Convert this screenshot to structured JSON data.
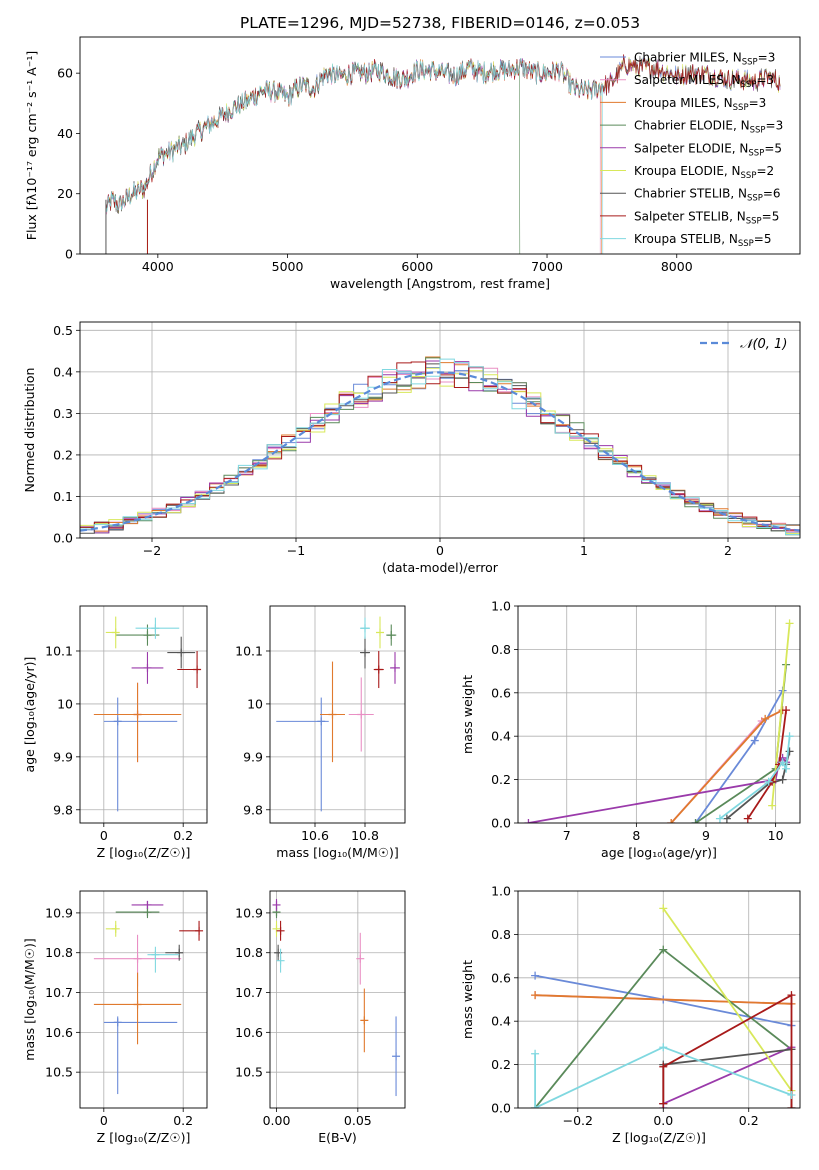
{
  "title": "PLATE=1296, MJD=52738, FIBERID=0146, z=0.053",
  "colors": {
    "Chabrier MILES": "#6a8ad8",
    "Salpeter MILES": "#e98fc4",
    "Kroupa MILES": "#e07a2e",
    "Chabrier ELODIE": "#5a8a5a",
    "Salpeter ELODIE": "#9a3aaa",
    "Kroupa ELODIE": "#d8e85a",
    "Chabrier STELIB": "#555555",
    "Salpeter STELIB": "#a81a1a",
    "Kroupa STELIB": "#80d8e0"
  },
  "chart_data": [
    {
      "id": "spectrum",
      "type": "line",
      "title": "PLATE=1296, MJD=52738, FIBERID=0146, z=0.053",
      "xlabel": "wavelength [Angstrom, rest frame]",
      "ylabel": "Flux [fλ10⁻¹⁷ erg cm⁻² s⁻¹ A⁻¹]",
      "xlim": [
        3400,
        8950
      ],
      "ylim": [
        0,
        72
      ],
      "xticks": [
        4000,
        5000,
        6000,
        7000,
        8000
      ],
      "yticks": [
        0,
        20,
        40,
        60
      ],
      "grid": false,
      "legend_position": "top-right",
      "legend": [
        "Chabrier MILES, N_SSP=3",
        "Salpeter MILES, N_SSP=3",
        "Kroupa MILES, N_SSP=3",
        "Chabrier ELODIE, N_SSP=3",
        "Salpeter ELODIE, N_SSP=5",
        "Kroupa ELODIE, N_SSP=2",
        "Chabrier STELIB, N_SSP=6",
        "Salpeter STELIB, N_SSP=5",
        "Kroupa STELIB, N_SSP=5"
      ],
      "legend_subscript": "SSP",
      "continuum": {
        "x": [
          3600,
          3650,
          3700,
          3800,
          3900,
          4000,
          4100,
          4200,
          4300,
          4400,
          4500,
          4600,
          4700,
          4800,
          4900,
          5000,
          5100,
          5200,
          5300,
          5400,
          5500,
          5600,
          5700,
          5800,
          5900,
          6000,
          6100,
          6200,
          6300,
          6400,
          6500,
          6600,
          6700,
          6800,
          6900,
          7000,
          7100,
          7200,
          7300,
          7400,
          7500,
          7600,
          7700,
          7800,
          7900,
          8000,
          8100,
          8200,
          8300,
          8400,
          8500,
          8600,
          8700,
          8800
        ],
        "y": [
          15,
          18,
          16,
          20,
          22,
          32,
          34,
          36,
          40,
          43,
          46,
          49,
          51,
          54,
          54,
          52,
          56,
          55,
          60,
          59,
          60,
          60,
          61,
          59,
          58,
          61,
          61,
          60,
          59,
          62,
          60,
          61,
          61,
          62,
          60,
          60,
          61,
          55,
          54,
          55,
          57,
          63,
          62,
          62,
          61,
          59,
          60,
          60,
          59,
          58,
          58,
          57,
          59,
          57
        ]
      },
      "drops": {
        "Chabrier MILES": 3600,
        "Kroupa ELODIE": 3920,
        "Salpeter STELIB": 3920,
        "Chabrier ELODIE": 6790,
        "Salpeter MILES": 7410,
        "Kroupa MILES": 7420,
        "Kroupa STELIB": 7430
      }
    },
    {
      "id": "residuals",
      "type": "histogram",
      "xlabel": "(data-model)/error",
      "ylabel": "Normed distribution",
      "xlim": [
        -2.5,
        2.5
      ],
      "ylim": [
        0,
        0.52
      ],
      "xticks": [
        -2,
        -1,
        0,
        1,
        2
      ],
      "xticklabels": [
        "−2",
        "−1",
        "0",
        "1",
        "2"
      ],
      "yticks": [
        0.0,
        0.1,
        0.2,
        0.3,
        0.4,
        0.5
      ],
      "grid": true,
      "legend_position": "top-right",
      "legend": [
        "𝒩(0, 1)"
      ],
      "bins": 50,
      "reference_curve": "N(0,1)"
    },
    {
      "id": "age-vs-Z",
      "type": "scatter",
      "xlabel": "Z [log₁₀(Z/Z☉)]",
      "ylabel": "age  [log₁₀(age/yr)]",
      "xlim": [
        -0.06,
        0.26
      ],
      "ylim": [
        9.775,
        10.185
      ],
      "xticks": [
        0.0,
        0.2
      ],
      "yticks": [
        9.8,
        9.9,
        10.0,
        10.1
      ],
      "grid": true,
      "points": [
        {
          "series": "Chabrier MILES",
          "x": 0.035,
          "y": 9.967,
          "xerr": [
            0.035,
            0.15
          ],
          "yerr": [
            0.17,
            0.045
          ]
        },
        {
          "series": "Salpeter MILES",
          "x": 0.085,
          "y": 9.98,
          "xerr": [
            0.11,
            0.11
          ],
          "yerr": [
            0.09,
            0.06
          ]
        },
        {
          "series": "Kroupa MILES",
          "x": 0.085,
          "y": 9.98,
          "xerr": [
            0.11,
            0.11
          ],
          "yerr": [
            0.09,
            0.06
          ]
        },
        {
          "series": "Chabrier ELODIE",
          "x": 0.11,
          "y": 10.13,
          "xerr": [
            0.08,
            0.03
          ],
          "yerr": [
            0.02,
            0.02
          ]
        },
        {
          "series": "Salpeter ELODIE",
          "x": 0.11,
          "y": 10.068,
          "xerr": [
            0.04,
            0.04
          ],
          "yerr": [
            0.03,
            0.03
          ]
        },
        {
          "series": "Kroupa ELODIE",
          "x": 0.03,
          "y": 10.135,
          "xerr": [
            0.025,
            0.0
          ],
          "yerr": [
            0.03,
            0.03
          ]
        },
        {
          "series": "Chabrier STELIB",
          "x": 0.195,
          "y": 10.097,
          "xerr": [
            0.035,
            0.035
          ],
          "yerr": [
            0.03,
            0.03
          ]
        },
        {
          "series": "Salpeter STELIB",
          "x": 0.235,
          "y": 10.065,
          "xerr": [
            0.05,
            0.0
          ],
          "yerr": [
            0.035,
            0.035
          ]
        },
        {
          "series": "Kroupa STELIB",
          "x": 0.13,
          "y": 10.143,
          "xerr": [
            0.05,
            0.06
          ],
          "yerr": [
            0.02,
            0.02
          ]
        }
      ]
    },
    {
      "id": "age-vs-mass",
      "type": "scatter",
      "xlabel": "mass [log₁₀(M/M☉)]",
      "ylabel": "",
      "xlim": [
        10.42,
        10.96
      ],
      "ylim": [
        9.775,
        10.185
      ],
      "xticks": [
        10.6,
        10.8
      ],
      "yticks": [
        9.8,
        9.9,
        10.0,
        10.1
      ],
      "grid": true,
      "points": [
        {
          "series": "Chabrier MILES",
          "x": 10.625,
          "y": 9.967,
          "xerr": [
            0.18,
            0.03
          ],
          "yerr": [
            0.17,
            0.045
          ]
        },
        {
          "series": "Salpeter MILES",
          "x": 10.785,
          "y": 9.98,
          "xerr": [
            0.05,
            0.05
          ],
          "yerr": [
            0.07,
            0.07
          ]
        },
        {
          "series": "Kroupa MILES",
          "x": 10.67,
          "y": 9.98,
          "xerr": [
            0.05,
            0.05
          ],
          "yerr": [
            0.09,
            0.1
          ]
        },
        {
          "series": "Chabrier ELODIE",
          "x": 10.905,
          "y": 10.13,
          "xerr": [
            0.02,
            0.02
          ],
          "yerr": [
            0.02,
            0.02
          ]
        },
        {
          "series": "Salpeter ELODIE",
          "x": 10.92,
          "y": 10.068,
          "xerr": [
            0.02,
            0.02
          ],
          "yerr": [
            0.03,
            0.03
          ]
        },
        {
          "series": "Kroupa ELODIE",
          "x": 10.86,
          "y": 10.135,
          "xerr": [
            0.0,
            0.0
          ],
          "yerr": [
            0.03,
            0.03
          ]
        },
        {
          "series": "Chabrier STELIB",
          "x": 10.8,
          "y": 10.097,
          "xerr": [
            0.02,
            0.02
          ],
          "yerr": [
            0.03,
            0.03
          ]
        },
        {
          "series": "Salpeter STELIB",
          "x": 10.855,
          "y": 10.065,
          "xerr": [
            0.02,
            0.02
          ],
          "yerr": [
            0.035,
            0.035
          ]
        },
        {
          "series": "Kroupa STELIB",
          "x": 10.8,
          "y": 10.143,
          "xerr": [
            0.02,
            0.02
          ],
          "yerr": [
            0.02,
            0.02
          ]
        }
      ]
    },
    {
      "id": "weight-vs-age",
      "type": "line",
      "xlabel": "age  [log₁₀(age/yr)]",
      "ylabel": "mass weight",
      "xlim": [
        6.3,
        10.35
      ],
      "ylim": [
        0.0,
        1.0
      ],
      "xticks": [
        7,
        8,
        9,
        10
      ],
      "yticks": [
        0.0,
        0.2,
        0.4,
        0.6,
        0.8,
        1.0
      ],
      "grid": true,
      "series": [
        {
          "name": "Chabrier MILES",
          "x": [
            8.85,
            9.7,
            10.1
          ],
          "y": [
            0.0,
            0.38,
            0.61
          ]
        },
        {
          "name": "Salpeter MILES",
          "x": [
            8.5,
            9.8,
            10.1
          ],
          "y": [
            0.0,
            0.47,
            0.52
          ]
        },
        {
          "name": "Kroupa MILES",
          "x": [
            8.5,
            9.85,
            10.1
          ],
          "y": [
            0.0,
            0.48,
            0.52
          ]
        },
        {
          "name": "Chabrier ELODIE",
          "x": [
            8.85,
            10.0,
            10.15
          ],
          "y": [
            0.0,
            0.25,
            0.73
          ]
        },
        {
          "name": "Salpeter ELODIE",
          "x": [
            6.45,
            10.0,
            10.05,
            10.1,
            10.15
          ],
          "y": [
            0.0,
            0.2,
            0.28,
            0.3,
            0.28
          ]
        },
        {
          "name": "Kroupa ELODIE",
          "x": [
            9.95,
            10.2
          ],
          "y": [
            0.08,
            0.92
          ]
        },
        {
          "name": "Chabrier STELIB",
          "x": [
            9.3,
            9.9,
            10.1,
            10.15,
            10.2
          ],
          "y": [
            0.02,
            0.18,
            0.2,
            0.27,
            0.33
          ]
        },
        {
          "name": "Salpeter STELIB",
          "x": [
            9.6,
            9.95,
            10.05,
            10.15
          ],
          "y": [
            0.02,
            0.19,
            0.27,
            0.52
          ]
        },
        {
          "name": "Kroupa STELIB",
          "x": [
            9.2,
            9.9,
            10.1,
            10.15,
            10.2
          ],
          "y": [
            0.02,
            0.19,
            0.28,
            0.25,
            0.4
          ]
        }
      ]
    },
    {
      "id": "mass-vs-Z",
      "type": "scatter",
      "xlabel": "Z [log₁₀(Z/Z☉)]",
      "ylabel": "mass [log₁₀(M/M☉)]",
      "xlim": [
        -0.06,
        0.26
      ],
      "ylim": [
        10.41,
        10.955
      ],
      "xticks": [
        0.0,
        0.2
      ],
      "yticks": [
        10.5,
        10.6,
        10.7,
        10.8,
        10.9
      ],
      "grid": true,
      "points": [
        {
          "series": "Chabrier MILES",
          "x": 0.035,
          "y": 10.625,
          "xerr": [
            0.035,
            0.15
          ],
          "yerr": [
            0.18,
            0.015
          ]
        },
        {
          "series": "Salpeter MILES",
          "x": 0.085,
          "y": 10.785,
          "xerr": [
            0.11,
            0.11
          ],
          "yerr": [
            0.07,
            0.06
          ]
        },
        {
          "series": "Kroupa MILES",
          "x": 0.085,
          "y": 10.67,
          "xerr": [
            0.11,
            0.11
          ],
          "yerr": [
            0.1,
            0.08
          ]
        },
        {
          "series": "Chabrier ELODIE",
          "x": 0.11,
          "y": 10.902,
          "xerr": [
            0.08,
            0.03
          ],
          "yerr": [
            0.015,
            0.015
          ]
        },
        {
          "series": "Salpeter ELODIE",
          "x": 0.11,
          "y": 10.92,
          "xerr": [
            0.04,
            0.04
          ],
          "yerr": [
            0.01,
            0.01
          ]
        },
        {
          "series": "Kroupa ELODIE",
          "x": 0.03,
          "y": 10.86,
          "xerr": [
            0.025,
            0.0
          ],
          "yerr": [
            0.02,
            0.02
          ]
        },
        {
          "series": "Chabrier STELIB",
          "x": 0.19,
          "y": 10.8,
          "xerr": [
            0.035,
            0.0
          ],
          "yerr": [
            0.02,
            0.02
          ]
        },
        {
          "series": "Salpeter STELIB",
          "x": 0.24,
          "y": 10.855,
          "xerr": [
            0.05,
            0.0
          ],
          "yerr": [
            0.025,
            0.025
          ]
        },
        {
          "series": "Kroupa STELIB",
          "x": 0.13,
          "y": 10.795,
          "xerr": [
            0.02,
            0.06
          ],
          "yerr": [
            0.045,
            0.02
          ]
        }
      ]
    },
    {
      "id": "mass-vs-EBV",
      "type": "scatter",
      "xlabel": "E(B-V)",
      "ylabel": "",
      "xlim": [
        -0.004,
        0.079
      ],
      "ylim": [
        10.41,
        10.955
      ],
      "xticks": [
        0.0,
        0.05
      ],
      "xticklabels": [
        "0.00",
        "0.05"
      ],
      "yticks": [
        10.5,
        10.6,
        10.7,
        10.8,
        10.9
      ],
      "grid": true,
      "points": [
        {
          "series": "Chabrier MILES",
          "x": 0.0735,
          "y": 10.54,
          "xerr": [
            0,
            0
          ],
          "yerr": [
            0.1,
            0.1
          ]
        },
        {
          "series": "Salpeter MILES",
          "x": 0.0515,
          "y": 10.785,
          "xerr": [
            0,
            0
          ],
          "yerr": [
            0.065,
            0.065
          ]
        },
        {
          "series": "Kroupa MILES",
          "x": 0.054,
          "y": 10.63,
          "xerr": [
            0,
            0
          ],
          "yerr": [
            0.08,
            0.08
          ]
        },
        {
          "series": "Chabrier ELODIE",
          "x": 0.0,
          "y": 10.902,
          "xerr": [
            0,
            0
          ],
          "yerr": [
            0.015,
            0.015
          ]
        },
        {
          "series": "Salpeter ELODIE",
          "x": 0.0,
          "y": 10.92,
          "xerr": [
            0,
            0
          ],
          "yerr": [
            0.015,
            0.015
          ]
        },
        {
          "series": "Kroupa ELODIE",
          "x": 0.0,
          "y": 10.86,
          "xerr": [
            0,
            0
          ],
          "yerr": [
            0.02,
            0.02
          ]
        },
        {
          "series": "Chabrier STELIB",
          "x": 0.001,
          "y": 10.8,
          "xerr": [
            0,
            0
          ],
          "yerr": [
            0.02,
            0.02
          ]
        },
        {
          "series": "Salpeter STELIB",
          "x": 0.0025,
          "y": 10.855,
          "xerr": [
            0,
            0
          ],
          "yerr": [
            0.025,
            0.025
          ]
        },
        {
          "series": "Kroupa STELIB",
          "x": 0.0025,
          "y": 10.78,
          "xerr": [
            0,
            0
          ],
          "yerr": [
            0.03,
            0.03
          ]
        }
      ]
    },
    {
      "id": "weight-vs-Z",
      "type": "line",
      "xlabel": "Z [log₁₀(Z/Z☉)]",
      "ylabel": "mass weight",
      "xlim": [
        -0.34,
        0.32
      ],
      "ylim": [
        0.0,
        1.0
      ],
      "xticks": [
        -0.2,
        0.0,
        0.2
      ],
      "xticklabels": [
        "−0.2",
        "0.0",
        "0.2"
      ],
      "yticks": [
        0.0,
        0.2,
        0.4,
        0.6,
        0.8,
        1.0
      ],
      "grid": true,
      "series": [
        {
          "name": "Chabrier MILES",
          "x": [
            -0.3,
            0.0,
            0.3
          ],
          "y": [
            0.61,
            0.5,
            0.38
          ]
        },
        {
          "name": "Salpeter MILES",
          "x": [
            -0.3,
            0.3
          ],
          "y": [
            0.52,
            0.48
          ]
        },
        {
          "name": "Kroupa MILES",
          "x": [
            -0.3,
            0.3
          ],
          "y": [
            0.52,
            0.48
          ]
        },
        {
          "name": "Chabrier ELODIE",
          "x": [
            -0.3,
            0.0,
            0.3
          ],
          "y": [
            0.0,
            0.73,
            0.27
          ]
        },
        {
          "name": "Salpeter ELODIE",
          "x": [
            0.0,
            0.0,
            0.3
          ],
          "y": [
            0.0,
            0.02,
            0.28
          ]
        },
        {
          "name": "Kroupa ELODIE",
          "x": [
            0.0,
            0.3
          ],
          "y": [
            0.92,
            0.08
          ]
        },
        {
          "name": "Chabrier STELIB",
          "x": [
            0.0,
            0.0,
            0.3,
            0.3
          ],
          "y": [
            0.02,
            0.2,
            0.27,
            0.0
          ]
        },
        {
          "name": "Salpeter STELIB",
          "x": [
            0.0,
            0.0,
            0.3,
            0.3
          ],
          "y": [
            0.02,
            0.19,
            0.52,
            0.0
          ]
        },
        {
          "name": "Kroupa STELIB",
          "x": [
            -0.3,
            -0.3,
            0.0,
            0.3
          ],
          "y": [
            0.25,
            0.0,
            0.28,
            0.06
          ]
        }
      ]
    }
  ]
}
